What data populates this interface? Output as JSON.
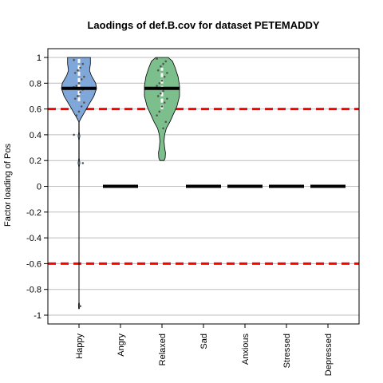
{
  "chart_data": {
    "type": "violin",
    "title": "Laodings of def.B.cov for dataset PETEMADDY",
    "xlabel": "",
    "ylabel": "Factor loading of Pos",
    "ylim": [
      -1,
      1
    ],
    "y_ticks": [
      1,
      0.8,
      0.6,
      0.4,
      0.2,
      0,
      -0.2,
      -0.4,
      -0.6,
      -0.8,
      -1
    ],
    "y_tick_labels": [
      "1",
      "0.8",
      "0.6",
      "0.4",
      "0.2",
      "0",
      "-0.2",
      "-0.4",
      "-0.6",
      "-0.8",
      "-1"
    ],
    "categories": [
      "Happy",
      "Angry",
      "Relaxed",
      "Sad",
      "Anxious",
      "Stressed",
      "Depressed"
    ],
    "medians": [
      0.76,
      0,
      0.76,
      0,
      0,
      0,
      0
    ],
    "violins": [
      {
        "category": "Happy",
        "color": "#7fa7d9",
        "profile": [
          [
            -0.95,
            0.02
          ],
          [
            -0.92,
            0.03
          ],
          [
            -0.9,
            0.005
          ],
          [
            -0.6,
            0.005
          ],
          [
            -0.2,
            0.005
          ],
          [
            0.15,
            0.01
          ],
          [
            0.18,
            0.05
          ],
          [
            0.22,
            0.01
          ],
          [
            0.36,
            0.01
          ],
          [
            0.39,
            0.05
          ],
          [
            0.42,
            0.01
          ],
          [
            0.5,
            0.01
          ],
          [
            0.52,
            0.08
          ],
          [
            0.56,
            0.25
          ],
          [
            0.62,
            0.5
          ],
          [
            0.7,
            0.85
          ],
          [
            0.76,
            1.0
          ],
          [
            0.8,
            0.95
          ],
          [
            0.86,
            0.7
          ],
          [
            0.9,
            0.6
          ],
          [
            0.95,
            0.65
          ],
          [
            1.0,
            0.65
          ]
        ],
        "quartile_box": [
          0.66,
          1.0
        ],
        "points": [
          0.98,
          0.95,
          0.92,
          0.9,
          0.88,
          0.85,
          0.83,
          0.8,
          0.78,
          0.77,
          0.75,
          0.73,
          0.7,
          0.68,
          0.65,
          0.62,
          0.58,
          0.55,
          0.4,
          0.18,
          -0.93
        ]
      },
      {
        "category": "Relaxed",
        "color": "#7dbf8c",
        "profile": [
          [
            0.2,
            0.12
          ],
          [
            0.22,
            0.18
          ],
          [
            0.26,
            0.2
          ],
          [
            0.3,
            0.15
          ],
          [
            0.35,
            0.12
          ],
          [
            0.4,
            0.15
          ],
          [
            0.45,
            0.25
          ],
          [
            0.5,
            0.45
          ],
          [
            0.56,
            0.65
          ],
          [
            0.62,
            0.85
          ],
          [
            0.7,
            1.0
          ],
          [
            0.78,
            1.0
          ],
          [
            0.85,
            0.92
          ],
          [
            0.92,
            0.75
          ],
          [
            0.97,
            0.6
          ],
          [
            1.0,
            0.35
          ]
        ],
        "quartile_box": [
          0.6,
          0.92
        ],
        "points": [
          0.99,
          0.97,
          0.95,
          0.93,
          0.9,
          0.88,
          0.85,
          0.82,
          0.8,
          0.78,
          0.76,
          0.74,
          0.72,
          0.7,
          0.68,
          0.65,
          0.62,
          0.58,
          0.55,
          0.5,
          0.45
        ]
      }
    ],
    "reference_lines": [
      0.6,
      -0.6
    ],
    "reference_line_color": "#ff0000",
    "grid": "horizontal",
    "legend": "none"
  }
}
